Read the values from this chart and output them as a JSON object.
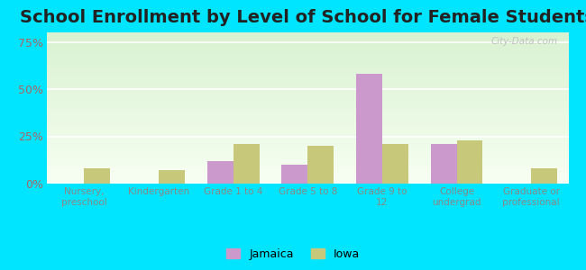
{
  "title": "School Enrollment by Level of School for Female Students",
  "categories": [
    "Nursery,\npreschool",
    "Kindergarten",
    "Grade 1 to 4",
    "Grade 5 to 8",
    "Grade 9 to\n12",
    "College\nundergrad",
    "Graduate or\nprofessional"
  ],
  "jamaica": [
    0,
    0,
    12,
    10,
    58,
    21,
    0
  ],
  "iowa": [
    8,
    7,
    21,
    20,
    21,
    23,
    8
  ],
  "jamaica_color": "#cc99cc",
  "iowa_color": "#c8c87a",
  "bg_color": "#00e5ff",
  "yticks": [
    0,
    25,
    50,
    75
  ],
  "ylim": [
    0,
    80
  ],
  "bar_width": 0.35,
  "title_fontsize": 14,
  "legend_jamaica": "Jamaica",
  "legend_iowa": "Iowa",
  "plot_bg_color_top": "#d4edda",
  "plot_bg_color_bottom": "#f0faf0",
  "watermark_color": "#c0c0c0",
  "ytick_color": "#aa6666",
  "xtick_color": "#888888",
  "grid_color": "#ffffff",
  "title_color": "#222222"
}
